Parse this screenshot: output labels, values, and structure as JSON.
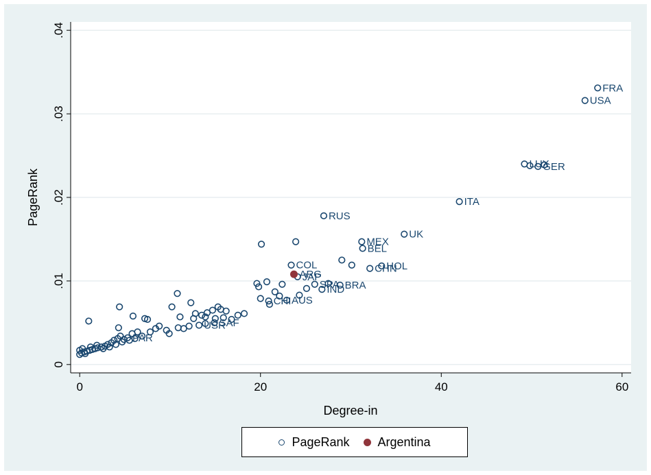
{
  "chart_data": {
    "type": "scatter",
    "title": "",
    "xlabel": "Degree-in",
    "ylabel": "PageRank",
    "xlim": [
      -1,
      61
    ],
    "ylim": [
      -0.001,
      0.041
    ],
    "x_ticks": [
      {
        "value": 0,
        "label": "0"
      },
      {
        "value": 20,
        "label": "20"
      },
      {
        "value": 40,
        "label": "40"
      },
      {
        "value": 60,
        "label": "60"
      }
    ],
    "y_ticks": [
      {
        "value": 0,
        "label": "0"
      },
      {
        "value": 0.01,
        "label": ".01"
      },
      {
        "value": 0.02,
        "label": ".02"
      },
      {
        "value": 0.03,
        "label": ".03"
      },
      {
        "value": 0.04,
        "label": ".04"
      }
    ],
    "grid": "horizontal",
    "legend": "bottom",
    "colors": {
      "pagerank": "#1a476f",
      "argentina": "#90353b"
    },
    "series": [
      {
        "name": "PageRank",
        "marker": "hollow-circle",
        "points": [
          {
            "x": 57.3,
            "y": 0.0331,
            "label": "FRA"
          },
          {
            "x": 55.9,
            "y": 0.0316,
            "label": "USA"
          },
          {
            "x": 49.2,
            "y": 0.024,
            "label": "LUX"
          },
          {
            "x": 49.8,
            "y": 0.0238,
            "label": ""
          },
          {
            "x": 50.7,
            "y": 0.0237,
            "label": "GER"
          },
          {
            "x": 51.4,
            "y": 0.0239,
            "label": ""
          },
          {
            "x": 42.0,
            "y": 0.0195,
            "label": "ITA"
          },
          {
            "x": 27.0,
            "y": 0.0178,
            "label": "RUS"
          },
          {
            "x": 35.9,
            "y": 0.0156,
            "label": "UK"
          },
          {
            "x": 31.2,
            "y": 0.0147,
            "label": "MEX"
          },
          {
            "x": 31.3,
            "y": 0.0139,
            "label": "BEL"
          },
          {
            "x": 20.1,
            "y": 0.0144,
            "label": ""
          },
          {
            "x": 23.9,
            "y": 0.0147,
            "label": ""
          },
          {
            "x": 29.0,
            "y": 0.0125,
            "label": ""
          },
          {
            "x": 30.1,
            "y": 0.0119,
            "label": ""
          },
          {
            "x": 33.4,
            "y": 0.0118,
            "label": "HOL"
          },
          {
            "x": 32.1,
            "y": 0.0115,
            "label": "CHN"
          },
          {
            "x": 23.4,
            "y": 0.0119,
            "label": "COL"
          },
          {
            "x": 24.1,
            "y": 0.0105,
            "label": "JAP"
          },
          {
            "x": 19.6,
            "y": 0.0097,
            "label": ""
          },
          {
            "x": 20.7,
            "y": 0.0099,
            "label": ""
          },
          {
            "x": 19.8,
            "y": 0.0093,
            "label": ""
          },
          {
            "x": 26.0,
            "y": 0.0096,
            "label": "SPA"
          },
          {
            "x": 27.5,
            "y": 0.0097,
            "label": ""
          },
          {
            "x": 28.8,
            "y": 0.0095,
            "label": "BRA"
          },
          {
            "x": 26.8,
            "y": 0.009,
            "label": "IND"
          },
          {
            "x": 25.1,
            "y": 0.0091,
            "label": ""
          },
          {
            "x": 22.4,
            "y": 0.0096,
            "label": ""
          },
          {
            "x": 21.6,
            "y": 0.0087,
            "label": ""
          },
          {
            "x": 22.1,
            "y": 0.0082,
            "label": ""
          },
          {
            "x": 24.3,
            "y": 0.0083,
            "label": ""
          },
          {
            "x": 20.9,
            "y": 0.0076,
            "label": "CHI"
          },
          {
            "x": 22.9,
            "y": 0.0077,
            "label": "AUS"
          },
          {
            "x": 20.0,
            "y": 0.0079,
            "label": ""
          },
          {
            "x": 21.0,
            "y": 0.0072,
            "label": ""
          },
          {
            "x": 10.8,
            "y": 0.0085,
            "label": ""
          },
          {
            "x": 12.3,
            "y": 0.0074,
            "label": ""
          },
          {
            "x": 10.2,
            "y": 0.0069,
            "label": ""
          },
          {
            "x": 4.4,
            "y": 0.0069,
            "label": ""
          },
          {
            "x": 1.0,
            "y": 0.0052,
            "label": ""
          },
          {
            "x": 5.9,
            "y": 0.0058,
            "label": ""
          },
          {
            "x": 15.3,
            "y": 0.0069,
            "label": ""
          },
          {
            "x": 14.7,
            "y": 0.0065,
            "label": ""
          },
          {
            "x": 15.6,
            "y": 0.0066,
            "label": ""
          },
          {
            "x": 14.1,
            "y": 0.0062,
            "label": ""
          },
          {
            "x": 16.2,
            "y": 0.0064,
            "label": ""
          },
          {
            "x": 12.8,
            "y": 0.0061,
            "label": ""
          },
          {
            "x": 13.5,
            "y": 0.0059,
            "label": ""
          },
          {
            "x": 12.6,
            "y": 0.0055,
            "label": ""
          },
          {
            "x": 13.9,
            "y": 0.0057,
            "label": ""
          },
          {
            "x": 15.0,
            "y": 0.0055,
            "label": ""
          },
          {
            "x": 15.9,
            "y": 0.0056,
            "label": ""
          },
          {
            "x": 17.5,
            "y": 0.0059,
            "label": ""
          },
          {
            "x": 18.2,
            "y": 0.0061,
            "label": ""
          },
          {
            "x": 16.8,
            "y": 0.0054,
            "label": ""
          },
          {
            "x": 11.1,
            "y": 0.0057,
            "label": ""
          },
          {
            "x": 13.9,
            "y": 0.0049,
            "label": ""
          },
          {
            "x": 14.9,
            "y": 0.005,
            "label": "SAF"
          },
          {
            "x": 13.2,
            "y": 0.0047,
            "label": "USR"
          },
          {
            "x": 12.1,
            "y": 0.0046,
            "label": ""
          },
          {
            "x": 11.5,
            "y": 0.0043,
            "label": ""
          },
          {
            "x": 10.9,
            "y": 0.0044,
            "label": ""
          },
          {
            "x": 9.6,
            "y": 0.0041,
            "label": ""
          },
          {
            "x": 8.8,
            "y": 0.0046,
            "label": ""
          },
          {
            "x": 9.9,
            "y": 0.0037,
            "label": ""
          },
          {
            "x": 8.4,
            "y": 0.0043,
            "label": ""
          },
          {
            "x": 7.8,
            "y": 0.0039,
            "label": ""
          },
          {
            "x": 7.2,
            "y": 0.0055,
            "label": ""
          },
          {
            "x": 7.5,
            "y": 0.0054,
            "label": ""
          },
          {
            "x": 6.4,
            "y": 0.0039,
            "label": ""
          },
          {
            "x": 5.8,
            "y": 0.0037,
            "label": ""
          },
          {
            "x": 6.9,
            "y": 0.0034,
            "label": ""
          },
          {
            "x": 5.3,
            "y": 0.0032,
            "label": "PAR"
          },
          {
            "x": 4.9,
            "y": 0.003,
            "label": ""
          },
          {
            "x": 4.5,
            "y": 0.0034,
            "label": ""
          },
          {
            "x": 4.2,
            "y": 0.0031,
            "label": ""
          },
          {
            "x": 4.3,
            "y": 0.0044,
            "label": ""
          },
          {
            "x": 3.8,
            "y": 0.0029,
            "label": ""
          },
          {
            "x": 3.5,
            "y": 0.0026,
            "label": ""
          },
          {
            "x": 3.1,
            "y": 0.0024,
            "label": ""
          },
          {
            "x": 2.8,
            "y": 0.0022,
            "label": ""
          },
          {
            "x": 2.4,
            "y": 0.0021,
            "label": ""
          },
          {
            "x": 2.0,
            "y": 0.002,
            "label": ""
          },
          {
            "x": 1.7,
            "y": 0.0019,
            "label": ""
          },
          {
            "x": 1.4,
            "y": 0.0018,
            "label": ""
          },
          {
            "x": 1.1,
            "y": 0.0017,
            "label": ""
          },
          {
            "x": 0.8,
            "y": 0.0016,
            "label": ""
          },
          {
            "x": 0.5,
            "y": 0.0015,
            "label": ""
          },
          {
            "x": 0.2,
            "y": 0.0014,
            "label": ""
          },
          {
            "x": 0.0,
            "y": 0.0012,
            "label": ""
          },
          {
            "x": 0.0,
            "y": 0.0017,
            "label": ""
          },
          {
            "x": 0.3,
            "y": 0.0019,
            "label": ""
          },
          {
            "x": 0.6,
            "y": 0.0013,
            "label": ""
          },
          {
            "x": 1.2,
            "y": 0.0021,
            "label": ""
          },
          {
            "x": 1.9,
            "y": 0.0023,
            "label": ""
          },
          {
            "x": 2.6,
            "y": 0.0019,
            "label": ""
          },
          {
            "x": 3.3,
            "y": 0.0021,
            "label": ""
          },
          {
            "x": 4.0,
            "y": 0.0024,
            "label": ""
          },
          {
            "x": 4.7,
            "y": 0.0027,
            "label": ""
          },
          {
            "x": 5.5,
            "y": 0.0029,
            "label": ""
          },
          {
            "x": 6.1,
            "y": 0.0031,
            "label": ""
          }
        ]
      },
      {
        "name": "Argentina",
        "marker": "solid-circle",
        "points": [
          {
            "x": 23.7,
            "y": 0.0108,
            "label": "ARG"
          }
        ]
      }
    ]
  }
}
